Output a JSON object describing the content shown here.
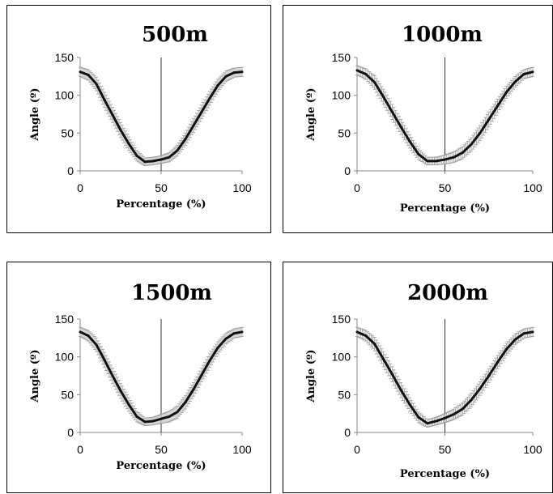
{
  "chart_data": [
    {
      "type": "line",
      "title": "500m",
      "xlabel": "Percentage (%)",
      "ylabel": "Angle (º)",
      "xlim": [
        0,
        100
      ],
      "ylim": [
        0,
        150
      ],
      "xticks": [
        "0",
        "50",
        "100"
      ],
      "yticks": [
        "0",
        "50",
        "100",
        "150"
      ],
      "vline_x": 50,
      "series": [
        {
          "x": [
            0,
            5,
            10,
            15,
            20,
            25,
            30,
            35,
            40,
            45,
            50,
            55,
            60,
            65,
            70,
            75,
            80,
            85,
            90,
            95,
            100
          ],
          "values": [
            131,
            127,
            115,
            94,
            74,
            54,
            36,
            20,
            12,
            13,
            15,
            18,
            27,
            42,
            60,
            78,
            96,
            113,
            125,
            130,
            131
          ],
          "error": [
            6,
            7,
            9,
            10,
            10,
            10,
            9,
            7,
            5,
            5,
            5,
            6,
            7,
            8,
            9,
            9,
            9,
            8,
            7,
            6,
            6
          ]
        }
      ]
    },
    {
      "type": "line",
      "title": "1000m",
      "xlabel": "Percentage (%)",
      "ylabel": "Angle (º)",
      "xlim": [
        0,
        100
      ],
      "ylim": [
        0,
        150
      ],
      "xticks": [
        "0",
        "50",
        "100"
      ],
      "yticks": [
        "0",
        "50",
        "100",
        "150"
      ],
      "vline_x": 50,
      "series": [
        {
          "x": [
            0,
            5,
            10,
            15,
            20,
            25,
            30,
            35,
            40,
            45,
            50,
            55,
            60,
            65,
            70,
            75,
            80,
            85,
            90,
            95,
            100
          ],
          "values": [
            133,
            128,
            117,
            98,
            78,
            58,
            39,
            22,
            13,
            13,
            15,
            18,
            24,
            35,
            50,
            68,
            86,
            104,
            118,
            128,
            131
          ],
          "error": [
            6,
            7,
            9,
            10,
            10,
            10,
            9,
            7,
            5,
            5,
            6,
            7,
            8,
            9,
            10,
            10,
            9,
            8,
            7,
            6,
            6
          ]
        }
      ]
    },
    {
      "type": "line",
      "title": "1500m",
      "xlabel": "Percentage (%)",
      "ylabel": "Angle (º)",
      "xlim": [
        0,
        100
      ],
      "ylim": [
        0,
        150
      ],
      "xticks": [
        "0",
        "50",
        "100"
      ],
      "yticks": [
        "0",
        "50",
        "100",
        "150"
      ],
      "vline_x": 50,
      "series": [
        {
          "x": [
            0,
            5,
            10,
            15,
            20,
            25,
            30,
            35,
            40,
            45,
            50,
            55,
            60,
            65,
            70,
            75,
            80,
            85,
            90,
            95,
            100
          ],
          "values": [
            133,
            128,
            116,
            96,
            75,
            55,
            37,
            21,
            14,
            15,
            18,
            21,
            27,
            40,
            57,
            76,
            95,
            112,
            124,
            131,
            133
          ],
          "error": [
            6,
            7,
            9,
            10,
            10,
            10,
            9,
            7,
            5,
            5,
            6,
            7,
            8,
            9,
            9,
            9,
            9,
            8,
            7,
            6,
            6
          ]
        }
      ]
    },
    {
      "type": "line",
      "title": "2000m",
      "xlabel": "Percentage (%)",
      "ylabel": "Angle (º)",
      "xlim": [
        0,
        100
      ],
      "ylim": [
        0,
        150
      ],
      "xticks": [
        "0",
        "50",
        "100"
      ],
      "yticks": [
        "0",
        "50",
        "100",
        "150"
      ],
      "vline_x": 50,
      "series": [
        {
          "x": [
            0,
            5,
            10,
            15,
            20,
            25,
            30,
            35,
            40,
            45,
            50,
            55,
            60,
            65,
            70,
            75,
            80,
            85,
            90,
            95,
            100
          ],
          "values": [
            133,
            128,
            117,
            97,
            77,
            56,
            37,
            20,
            12,
            15,
            19,
            24,
            31,
            43,
            58,
            75,
            93,
            110,
            123,
            131,
            133
          ],
          "error": [
            6,
            7,
            9,
            10,
            10,
            10,
            9,
            7,
            5,
            5,
            6,
            7,
            8,
            9,
            9,
            9,
            9,
            8,
            7,
            6,
            6
          ]
        }
      ]
    }
  ]
}
